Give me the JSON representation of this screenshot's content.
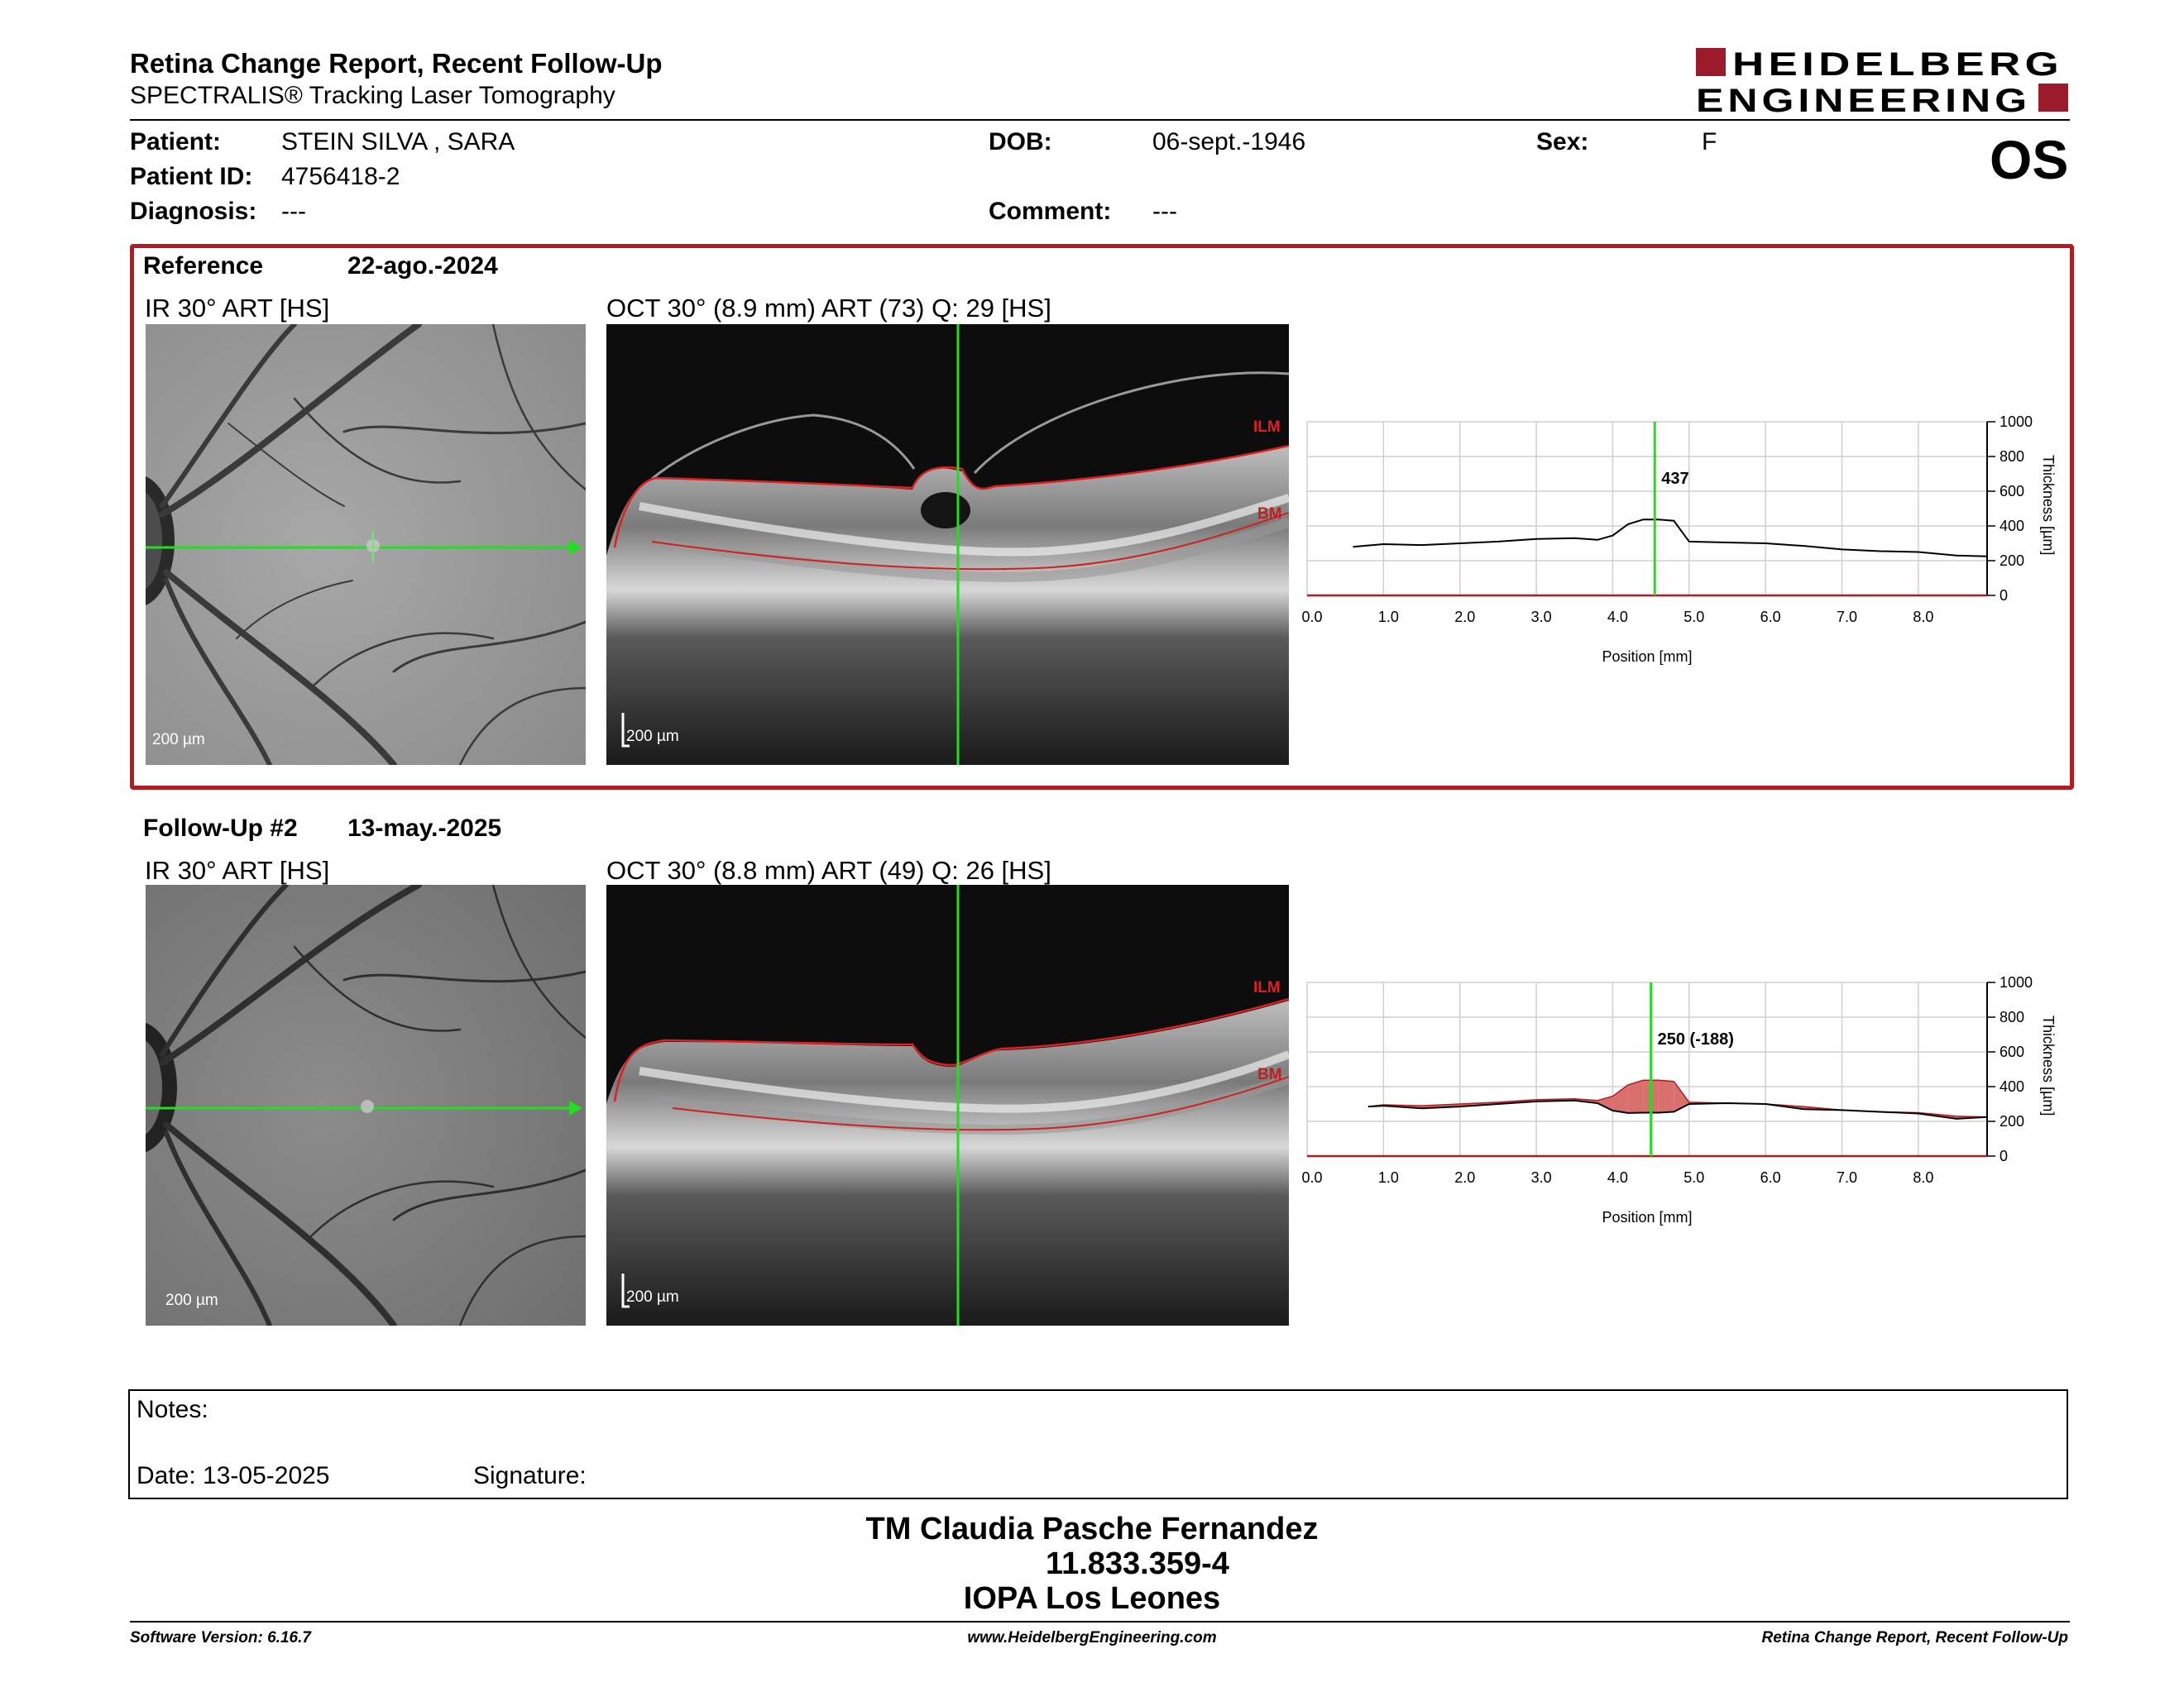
{
  "header": {
    "title": "Retina Change Report, Recent Follow-Up",
    "subtitle": "SPECTRALIS® Tracking Laser Tomography",
    "logo_line1": "HEIDELBERG",
    "logo_line2": "ENGINEERING",
    "brand_color": "#9b1b2a"
  },
  "patient": {
    "patient_label": "Patient:",
    "patient_value": "STEIN SILVA , SARA",
    "id_label": "Patient ID:",
    "id_value": "4756418-2",
    "diagnosis_label": "Diagnosis:",
    "diagnosis_value": "---",
    "dob_label": "DOB:",
    "dob_value": "06-sept.-1946",
    "comment_label": "Comment:",
    "comment_value": "---",
    "sex_label": "Sex:",
    "sex_value": "F",
    "eye": "OS"
  },
  "reference": {
    "label": "Reference",
    "date": "22-ago.-2024",
    "ir_label": "IR 30° ART [HS]",
    "oct_label": "OCT 30° (8.9 mm) ART (73) Q: 29 [HS]",
    "scale_ir": "200 µm",
    "scale_oct": "200 µm",
    "ilm": "ILM",
    "bm": "BM",
    "cursor_value": "437"
  },
  "followup": {
    "label": "Follow-Up #2",
    "date": "13-may.-2025",
    "ir_label": "IR 30° ART [HS]",
    "oct_label": "OCT 30° (8.8 mm) ART (49) Q: 26 [HS]",
    "scale_ir": "200 µm",
    "scale_oct": "200 µm",
    "ilm": "ILM",
    "bm": "BM",
    "cursor_value": "250 (-188)"
  },
  "chart_axes": {
    "x_ticks": [
      "0.0",
      "1.0",
      "2.0",
      "3.0",
      "4.0",
      "5.0",
      "6.0",
      "7.0",
      "8.0"
    ],
    "y_ticks": [
      "0",
      "200",
      "400",
      "600",
      "800",
      "1000"
    ],
    "xlabel": "Position [mm]",
    "ylabel": "Thickness [µm]"
  },
  "chart_data": [
    {
      "type": "line",
      "xlabel": "Position [mm]",
      "ylabel": "Thickness [µm]",
      "xlim": [
        0,
        8.9
      ],
      "ylim": [
        0,
        1000
      ],
      "cursor_x": 4.55,
      "annotation": "437",
      "series": [
        {
          "x": [
            0.6,
            1.0,
            1.5,
            2.0,
            2.5,
            3.0,
            3.5,
            3.8,
            4.0,
            4.2,
            4.4,
            4.6,
            4.8,
            5.0,
            5.5,
            6.0,
            6.5,
            7.0,
            7.5,
            8.0,
            8.5,
            8.9
          ],
          "values": [
            280,
            295,
            290,
            300,
            310,
            325,
            330,
            320,
            345,
            410,
            437,
            437,
            430,
            310,
            305,
            300,
            285,
            265,
            255,
            250,
            230,
            225
          ]
        }
      ]
    },
    {
      "type": "area",
      "xlabel": "Position [mm]",
      "ylabel": "Thickness [µm]",
      "xlim": [
        0,
        8.9
      ],
      "ylim": [
        0,
        1000
      ],
      "cursor_x": 4.5,
      "annotation": "250 (-188)",
      "series": [
        {
          "name": "Reference",
          "x": [
            0.8,
            1.0,
            1.5,
            2.0,
            2.5,
            3.0,
            3.5,
            3.8,
            4.0,
            4.2,
            4.4,
            4.6,
            4.8,
            5.0,
            5.5,
            6.0,
            6.5,
            7.0,
            7.5,
            8.0,
            8.5,
            8.9
          ],
          "values": [
            285,
            295,
            290,
            300,
            310,
            325,
            330,
            320,
            345,
            410,
            437,
            437,
            430,
            310,
            305,
            300,
            285,
            265,
            255,
            250,
            230,
            225
          ]
        },
        {
          "name": "Follow-Up",
          "x": [
            0.8,
            1.0,
            1.5,
            2.0,
            2.5,
            3.0,
            3.5,
            3.8,
            4.0,
            4.2,
            4.4,
            4.6,
            4.8,
            5.0,
            5.5,
            6.0,
            6.5,
            7.0,
            7.5,
            8.0,
            8.5,
            8.9
          ],
          "values": [
            285,
            290,
            275,
            285,
            300,
            315,
            320,
            305,
            262,
            248,
            250,
            250,
            255,
            300,
            305,
            300,
            270,
            265,
            255,
            245,
            215,
            225
          ]
        }
      ],
      "colors": {
        "increase": "#8ee08a",
        "decrease": "#d9706e"
      }
    }
  ],
  "notes": {
    "label": "Notes:",
    "date_label": "Date: 13-05-2025",
    "signature_label": "Signature:"
  },
  "footer": {
    "name": "TM Claudia Pasche Fernandez",
    "id": "11.833.359-4",
    "institution": "IOPA Los Leones",
    "software": "Software Version: 6.16.7",
    "website": "www.HeidelbergEngineering.com",
    "report_name": "Retina Change Report, Recent Follow-Up"
  }
}
